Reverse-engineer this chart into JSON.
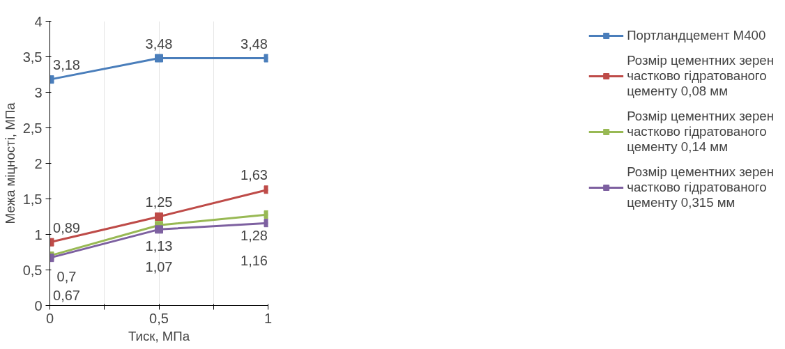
{
  "chart_data": {
    "type": "line",
    "xlabel": "Тиск, МПа",
    "ylabel": "Межа міцності, МПа",
    "x": [
      0,
      0.5,
      1
    ],
    "xlim": [
      0,
      1
    ],
    "xticks": [
      {
        "value": 0,
        "label": "0"
      },
      {
        "value": 0.25,
        "label": null
      },
      {
        "value": 0.5,
        "label": "0,5"
      },
      {
        "value": 0.75,
        "label": null
      },
      {
        "value": 1,
        "label": "1"
      }
    ],
    "ylim": [
      0,
      4
    ],
    "yticks": [
      0,
      {
        "value": 0.5,
        "label": "0,5"
      },
      1,
      {
        "value": 1.5,
        "label": "1,5"
      },
      2,
      {
        "value": 2.5,
        "label": "2,5"
      },
      3,
      {
        "value": 3.5,
        "label": "3,5"
      },
      4
    ],
    "grid": "x",
    "legend": "right",
    "marker": "square",
    "line_style": "solid",
    "series": [
      {
        "name": "Портландцемент М400",
        "color": "#4a7ebb",
        "values": [
          3.18,
          3.48,
          3.48
        ],
        "value_labels": [
          "3,18",
          "3,48",
          "3,48"
        ]
      },
      {
        "name": "Розмір цементних зерен частково гідратованого цементу 0,08 мм",
        "color": "#be4b48",
        "values": [
          0.89,
          1.25,
          1.63
        ],
        "value_labels": [
          "0,89",
          "1,25",
          "1,63"
        ]
      },
      {
        "name": "Розмір цементних зерен частково гідратованого цементу 0,14 мм",
        "color": "#98b954",
        "values": [
          0.7,
          1.13,
          1.28
        ],
        "value_labels": [
          "0,7",
          "1,13",
          "1,28"
        ]
      },
      {
        "name": "Розмір цементних зерен частково гідратованого цементу 0,315 мм",
        "color": "#7d60a0",
        "values": [
          0.67,
          1.07,
          1.16
        ],
        "value_labels": [
          "0,67",
          "1,07",
          "1,16"
        ]
      }
    ]
  }
}
